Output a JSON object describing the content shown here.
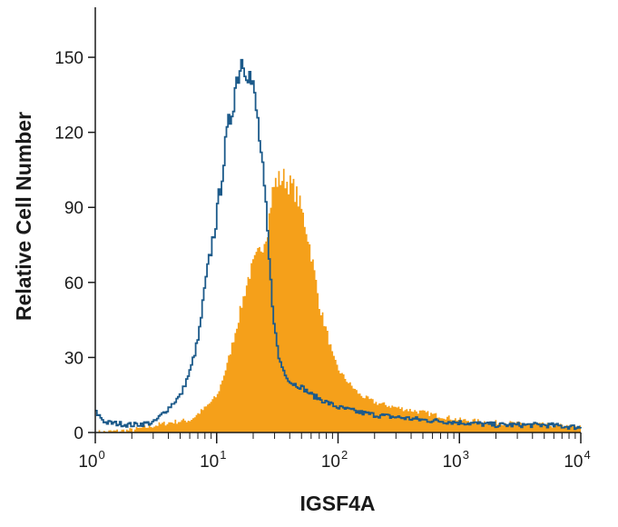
{
  "chart_data": {
    "type": "area",
    "title": "",
    "xlabel": "IGSF4A",
    "ylabel": "Relative Cell Number",
    "x_scale": "log",
    "xlim": [
      1,
      10000
    ],
    "ylim": [
      0,
      170
    ],
    "grid": false,
    "legend": "none",
    "x_ticks": [
      {
        "value": 1,
        "base": "10",
        "exp": "0"
      },
      {
        "value": 10,
        "base": "10",
        "exp": "1"
      },
      {
        "value": 100,
        "base": "10",
        "exp": "2"
      },
      {
        "value": 1000,
        "base": "10",
        "exp": "3"
      },
      {
        "value": 10000,
        "base": "10",
        "exp": "4"
      }
    ],
    "y_ticks": [
      {
        "value": 0,
        "label": "0"
      },
      {
        "value": 30,
        "label": "30"
      },
      {
        "value": 60,
        "label": "60"
      },
      {
        "value": 90,
        "label": "90"
      },
      {
        "value": 120,
        "label": "120"
      },
      {
        "value": 150,
        "label": "150"
      }
    ],
    "series": [
      {
        "style": "filled",
        "color": "#f5a01a",
        "points": [
          [
            1,
            0
          ],
          [
            2,
            1
          ],
          [
            4,
            4
          ],
          [
            6,
            5
          ],
          [
            8,
            10
          ],
          [
            10,
            15
          ],
          [
            12,
            27
          ],
          [
            14,
            40
          ],
          [
            16,
            52
          ],
          [
            18,
            62
          ],
          [
            20,
            68
          ],
          [
            22,
            72
          ],
          [
            24,
            76
          ],
          [
            26,
            82
          ],
          [
            28,
            95
          ],
          [
            30,
            100
          ],
          [
            32,
            101
          ],
          [
            35,
            102
          ],
          [
            38,
            100
          ],
          [
            42,
            98
          ],
          [
            45,
            95
          ],
          [
            50,
            88
          ],
          [
            55,
            80
          ],
          [
            60,
            70
          ],
          [
            65,
            60
          ],
          [
            70,
            50
          ],
          [
            80,
            40
          ],
          [
            90,
            30
          ],
          [
            100,
            25
          ],
          [
            120,
            20
          ],
          [
            150,
            15
          ],
          [
            200,
            12
          ],
          [
            300,
            10
          ],
          [
            500,
            8
          ],
          [
            1000,
            5
          ],
          [
            2000,
            4
          ],
          [
            5000,
            3
          ],
          [
            10000,
            2
          ]
        ]
      },
      {
        "style": "outline",
        "color": "#1c5a8a",
        "points": [
          [
            1,
            8
          ],
          [
            1.2,
            4
          ],
          [
            2,
            3
          ],
          [
            3,
            4
          ],
          [
            4,
            10
          ],
          [
            5,
            15
          ],
          [
            6,
            25
          ],
          [
            7,
            38
          ],
          [
            8,
            60
          ],
          [
            9,
            75
          ],
          [
            10,
            88
          ],
          [
            11,
            105
          ],
          [
            12,
            118
          ],
          [
            13,
            128
          ],
          [
            14,
            138
          ],
          [
            15,
            145
          ],
          [
            16,
            150
          ],
          [
            17,
            148
          ],
          [
            18,
            145
          ],
          [
            19,
            140
          ],
          [
            20,
            135
          ],
          [
            21,
            128
          ],
          [
            22,
            120
          ],
          [
            23,
            110
          ],
          [
            24,
            100
          ],
          [
            25,
            90
          ],
          [
            26,
            78
          ],
          [
            27,
            65
          ],
          [
            28,
            55
          ],
          [
            30,
            40
          ],
          [
            32,
            30
          ],
          [
            35,
            25
          ],
          [
            40,
            20
          ],
          [
            50,
            18
          ],
          [
            60,
            15
          ],
          [
            80,
            12
          ],
          [
            100,
            10
          ],
          [
            150,
            8
          ],
          [
            200,
            7
          ],
          [
            500,
            5
          ],
          [
            1000,
            4
          ],
          [
            2000,
            3
          ],
          [
            5000,
            3
          ],
          [
            10000,
            2
          ]
        ]
      }
    ]
  }
}
